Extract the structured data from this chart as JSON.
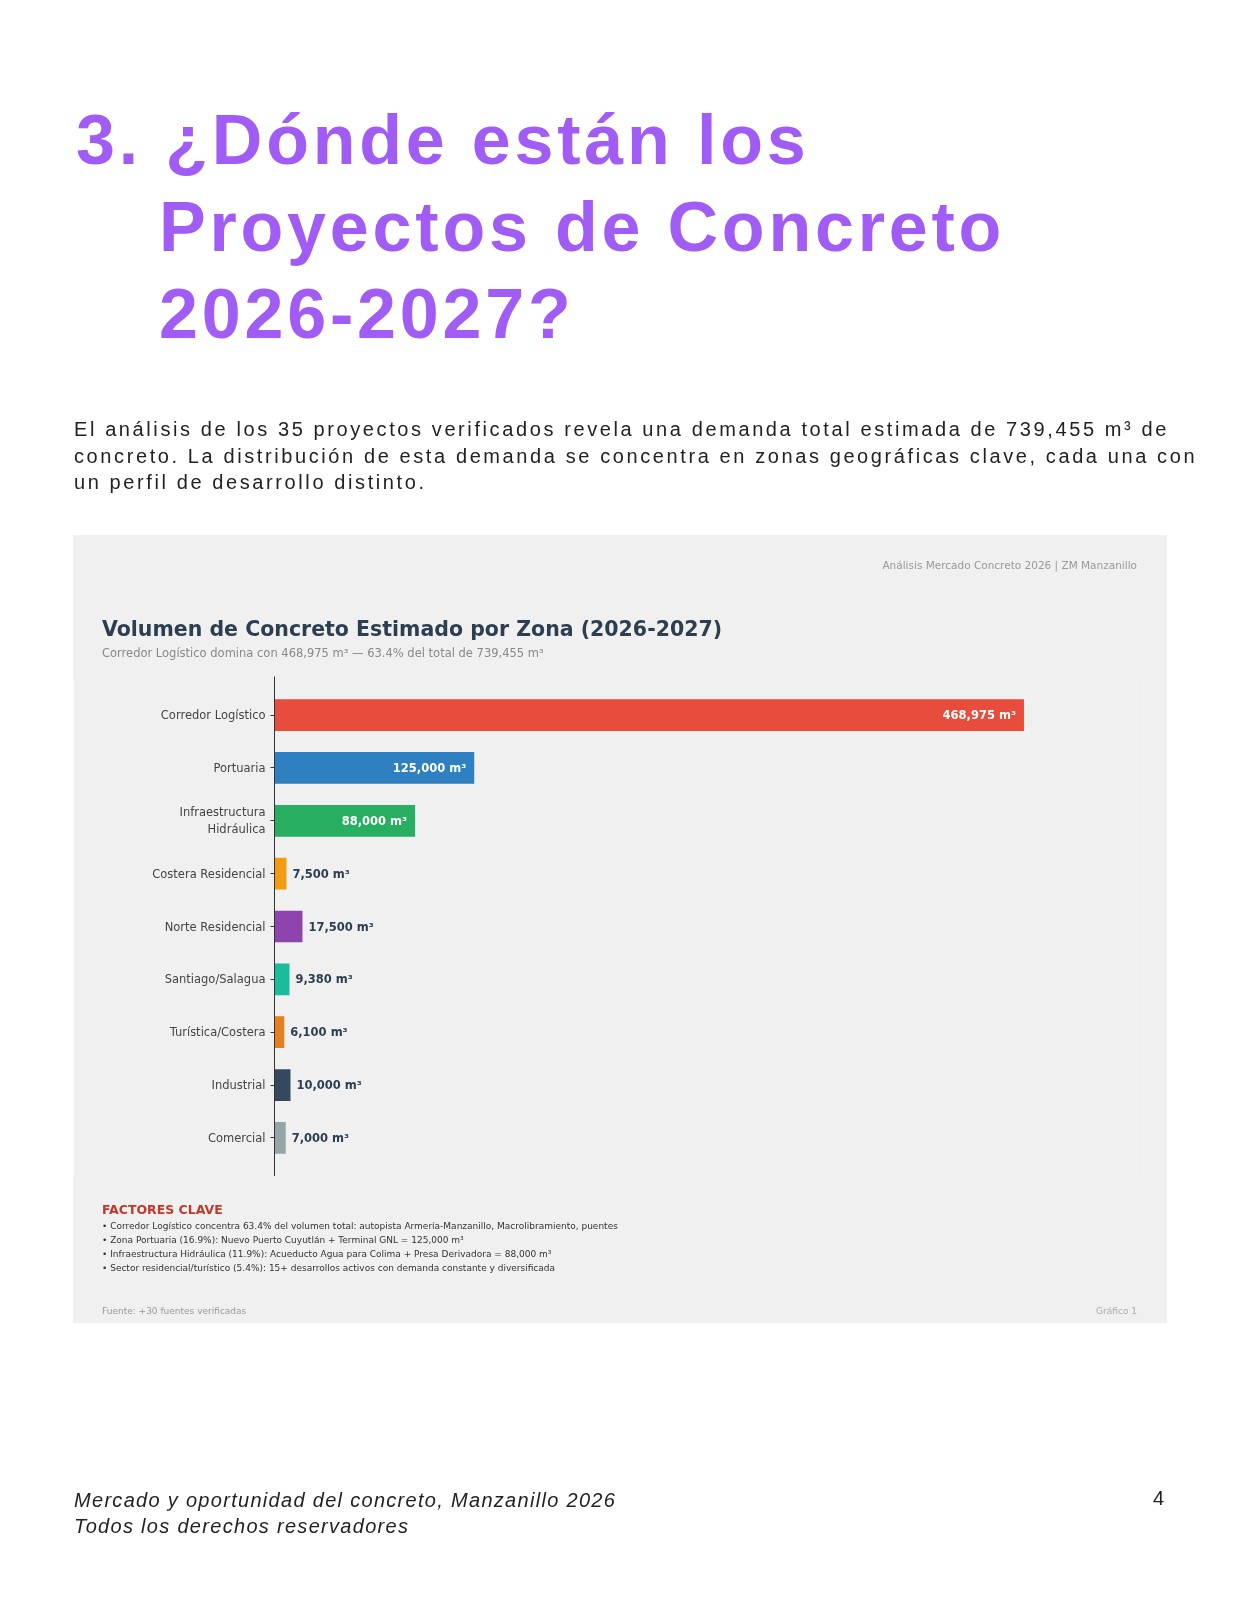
{
  "chart_data": {
    "type": "bar",
    "orientation": "horizontal",
    "title": "Volumen de Concreto Estimado por Zona (2026-2027)",
    "subtitle": "Corredor Logístico domina con 468,975 m³ — 63.4% del total de 739,455 m³",
    "categories": [
      "Corredor Logístico",
      "Portuaria",
      "Infraestructura Hidráulica",
      "Costera Residencial",
      "Norte Residencial",
      "Santiago/Salagua",
      "Turística/Costera",
      "Industrial",
      "Comercial"
    ],
    "values": [
      468975,
      125000,
      88000,
      7500,
      17500,
      9380,
      6100,
      10000,
      7000
    ],
    "colors": [
      "#e74c3c",
      "#2e80c0",
      "#27ae60",
      "#f39c12",
      "#8e44ad",
      "#1abc9c",
      "#e67e22",
      "#34495e",
      "#95a5a6"
    ],
    "value_labels": [
      "468,975 m³",
      "125,000 m³",
      "88,000 m³",
      "7,500 m³",
      "17,500 m³",
      "9,380 m³",
      "6,100 m³",
      "10,000 m³",
      "7,000 m³"
    ],
    "tick_labels": "y",
    "annotations": [
      "3. ¿Dónde están los Proyectos de Concreto 2026-2027?",
      "El análisis de los 35 proyectos verificados revela una demanda total estimada de 739,455 m³ de concreto. La distribución de esta demanda se concentra en zonas geográficas clave, cada una con un perfil de desarrollo distinto.",
      "Análisis Mercado Concreto 2026 | ZM Manzanillo",
      "FACTORES CLAVE",
      "• Corredor Logístico concentra 63.4% del volumen total: autopista Armería-Manzanillo, Macrolibramiento, puentes",
      "• Zona Portuaria (16.9%): Nuevo Puerto Cuyutlán + Terminal GNL = 125,000 m³",
      "• Infraestructura Hidráulica (11.9%): Acueducto Agua para Colima + Presa Derivadora = 88,000 m³",
      "• Sector residencial/turístico (5.4%): 15+ desarrollos activos con demanda constante y diversificada",
      "Fuente: +30 fuentes verificadas",
      "Gráfico 1",
      "Mercado y oportunidad del concreto, Manzanillo 2026",
      "Todos los derechos reservadores",
      "4"
    ]
  }
}
